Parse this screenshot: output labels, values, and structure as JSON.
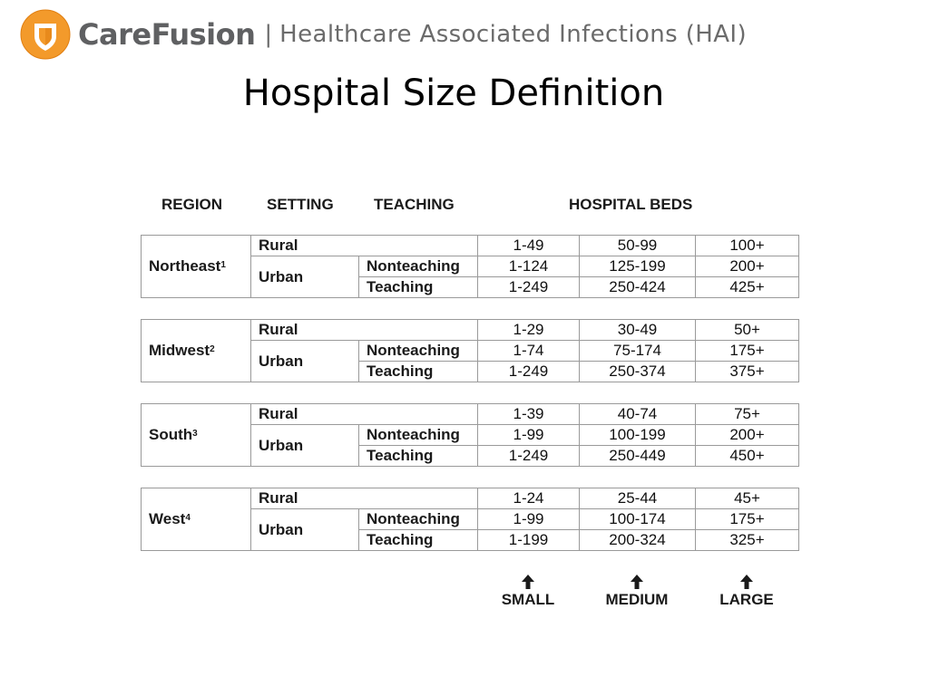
{
  "header": {
    "brand": "CareFusion",
    "separator": "|",
    "subtitle": "Healthcare Associated Infections (HAI)",
    "logo_icon": "shield-logo-icon",
    "brand_color": "#5f6062",
    "logo_color": "#f39a2b"
  },
  "slide_title": "Hospital Size Definition",
  "table_headers": {
    "region": "REGION",
    "setting": "SETTING",
    "teaching": "TEACHING",
    "beds": "HOSPITAL BEDS"
  },
  "regions": [
    {
      "name": "Northeast",
      "note": "1",
      "rural_label": "Rural",
      "urban_label": "Urban",
      "nonteaching_label": "Nonteaching",
      "teaching_label": "Teaching",
      "rural": [
        "1-49",
        "50-99",
        "100+"
      ],
      "nonteaching": [
        "1-124",
        "125-199",
        "200+"
      ],
      "teaching": [
        "1-249",
        "250-424",
        "425+"
      ]
    },
    {
      "name": "Midwest",
      "note": "2",
      "rural_label": "Rural",
      "urban_label": "Urban",
      "nonteaching_label": "Nonteaching",
      "teaching_label": "Teaching",
      "rural": [
        "1-29",
        "30-49",
        "50+"
      ],
      "nonteaching": [
        "1-74",
        "75-174",
        "175+"
      ],
      "teaching": [
        "1-249",
        "250-374",
        "375+"
      ]
    },
    {
      "name": "South",
      "note": "3",
      "rural_label": "Rural",
      "urban_label": "Urban",
      "nonteaching_label": "Nonteaching",
      "teaching_label": "Teaching",
      "rural": [
        "1-39",
        "40-74",
        "75+"
      ],
      "nonteaching": [
        "1-99",
        "100-199",
        "200+"
      ],
      "teaching": [
        "1-249",
        "250-449",
        "450+"
      ]
    },
    {
      "name": "West",
      "note": "4",
      "rural_label": "Rural",
      "urban_label": "Urban",
      "nonteaching_label": "Nonteaching",
      "teaching_label": "Teaching",
      "rural": [
        "1-24",
        "25-44",
        "45+"
      ],
      "nonteaching": [
        "1-99",
        "100-174",
        "175+"
      ],
      "teaching": [
        "1-199",
        "200-324",
        "325+"
      ]
    }
  ],
  "size_labels": [
    "SMALL",
    "MEDIUM",
    "LARGE"
  ],
  "arrow_icon": "arrow-up-icon"
}
